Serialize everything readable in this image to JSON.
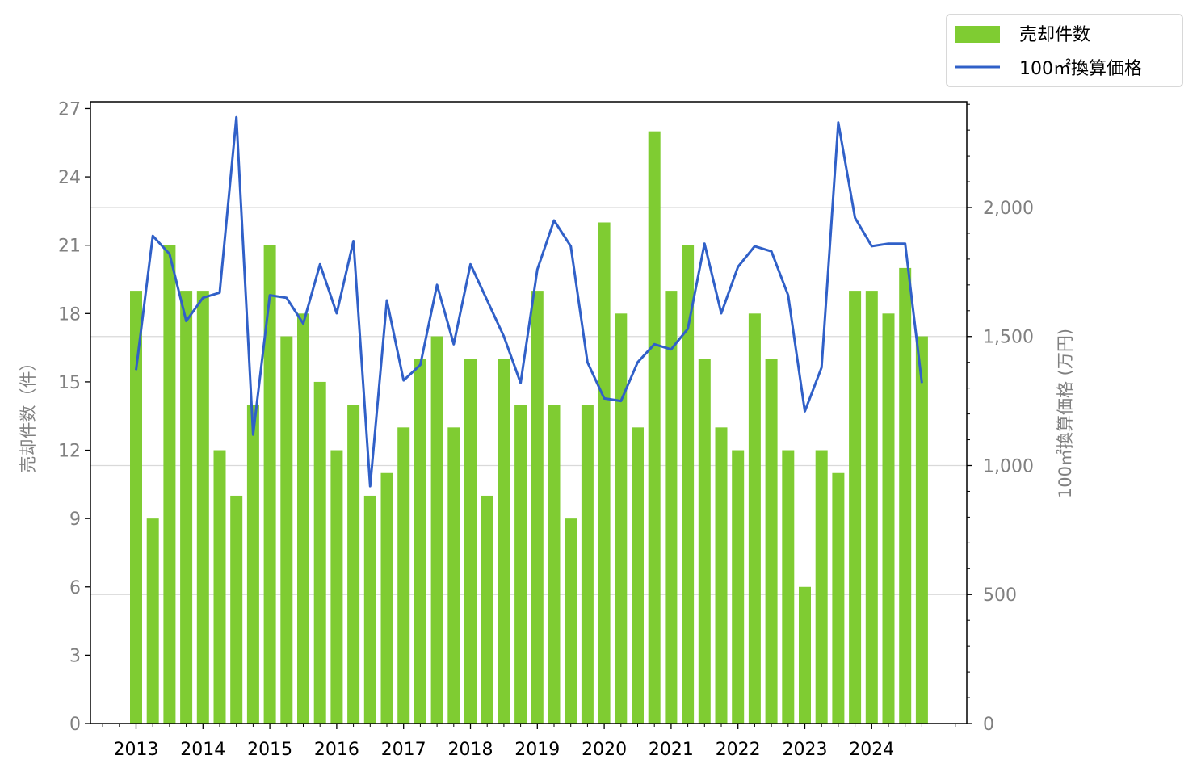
{
  "chart_data": {
    "type": "bar+line",
    "x_tick_labels": [
      "2013",
      "2014",
      "2015",
      "2016",
      "2017",
      "2018",
      "2019",
      "2020",
      "2021",
      "2022",
      "2023",
      "2024"
    ],
    "series": [
      {
        "name": "売却件数",
        "type": "bar",
        "axis": "left",
        "values": [
          19,
          9,
          21,
          19,
          19,
          12,
          10,
          14,
          21,
          17,
          18,
          15,
          12,
          14,
          10,
          11,
          13,
          16,
          17,
          13,
          16,
          10,
          16,
          14,
          19,
          14,
          9,
          14,
          22,
          18,
          13,
          26,
          19,
          21,
          16,
          13,
          12,
          18,
          16,
          12,
          6,
          12,
          11,
          19,
          19,
          18,
          20,
          17
        ]
      },
      {
        "name": "100㎡換算価格",
        "type": "line",
        "axis": "right",
        "values": [
          1370,
          1890,
          1820,
          1560,
          1650,
          1670,
          2350,
          1120,
          1660,
          1650,
          1550,
          1780,
          1590,
          1870,
          920,
          1640,
          1330,
          1390,
          1700,
          1470,
          1780,
          1640,
          1500,
          1320,
          1760,
          1950,
          1850,
          1400,
          1260,
          1250,
          1400,
          1470,
          1450,
          1530,
          1860,
          1590,
          1770,
          1850,
          1830,
          1660,
          1210,
          1380,
          2330,
          1960,
          1850,
          1860,
          1860,
          1320
        ]
      }
    ],
    "y_left": {
      "label": "売却件数（件）",
      "ticks": [
        "0",
        "3",
        "6",
        "9",
        "12",
        "15",
        "18",
        "21",
        "24",
        "27"
      ],
      "ylim": [
        0,
        27.3
      ]
    },
    "y_right": {
      "label": "100㎡換算価格 (万円)",
      "ticks": [
        "0",
        "500",
        "1,000",
        "1,500",
        "2,000"
      ],
      "ylim": [
        0,
        2410
      ]
    },
    "grid": "horizontal, right axis",
    "legend_position": "top-right, outside plot",
    "colors": {
      "bar": "#7fcc32",
      "line": "#3060c8",
      "grid": "#d9d9d9",
      "tick_text": "#808080",
      "year_text": "#000000"
    }
  }
}
